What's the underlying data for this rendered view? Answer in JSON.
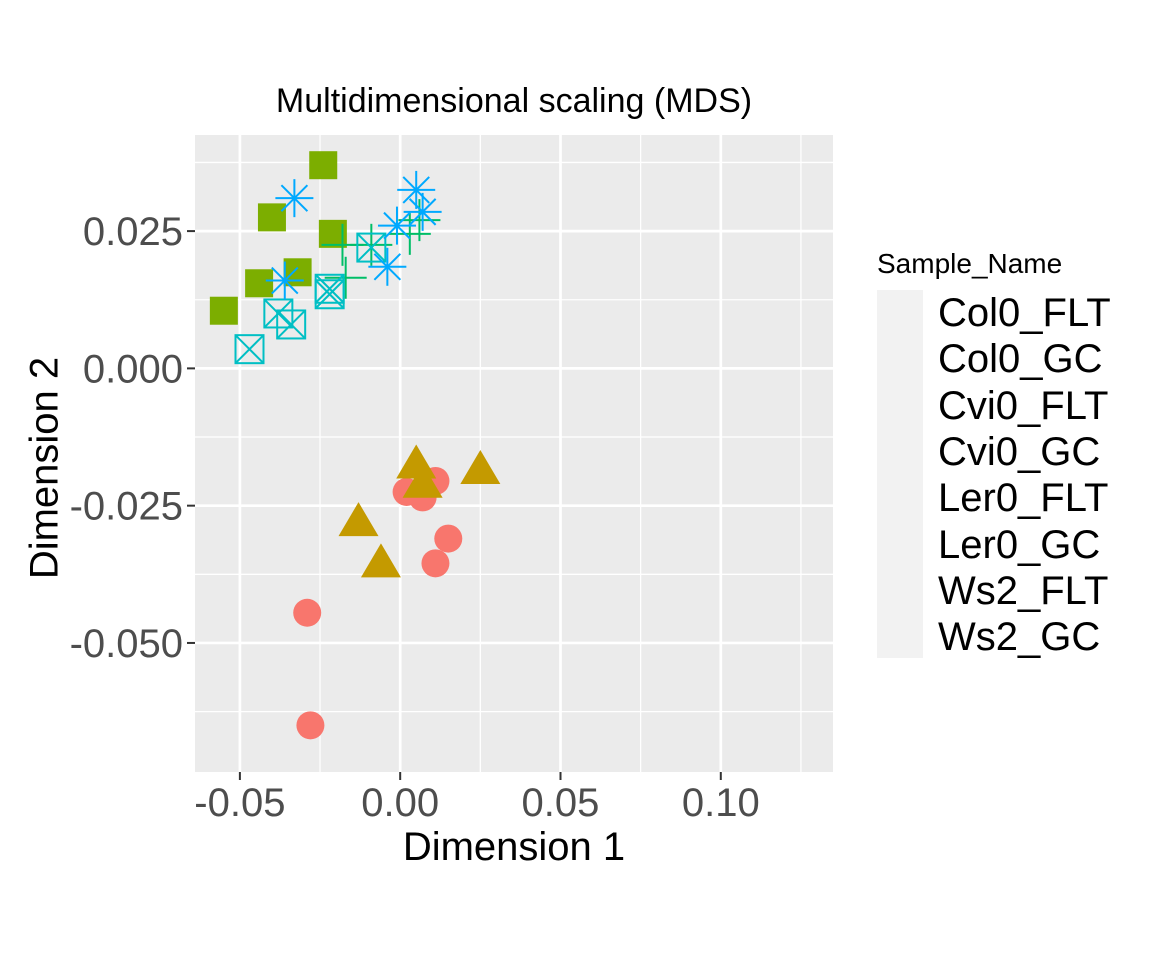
{
  "chart_data": {
    "type": "scatter",
    "title": "Multidimensional scaling (MDS)",
    "xlabel": "Dimension 1",
    "ylabel": "Dimension 2",
    "xlim": [
      -0.064,
      0.135
    ],
    "ylim": [
      -0.0735,
      0.0425
    ],
    "x_ticks": [
      -0.05,
      0.0,
      0.05,
      0.1
    ],
    "x_tick_labels": [
      "-0.05",
      "0.00",
      "0.05",
      "0.10"
    ],
    "y_ticks": [
      0.025,
      0.0,
      -0.025,
      -0.05
    ],
    "y_tick_labels": [
      "0.025",
      "0.000",
      "-0.025",
      "-0.050"
    ],
    "x_minor_ticks": [
      -0.025,
      0.025,
      0.075,
      0.125
    ],
    "y_minor_ticks": [
      0.0375,
      0.0125,
      -0.0125,
      -0.0375,
      -0.0625
    ],
    "grid": true,
    "legend_title": "Sample_Name",
    "legend_position": "right",
    "series": [
      {
        "name": "Col0_FLT",
        "shape": "circle",
        "color": "#F8766D",
        "points": [
          [
            0.011,
            -0.0205
          ],
          [
            0.002,
            -0.0225
          ],
          [
            0.007,
            -0.0235
          ],
          [
            0.015,
            -0.031
          ],
          [
            0.011,
            -0.0355
          ],
          [
            -0.029,
            -0.0445
          ],
          [
            -0.028,
            -0.065
          ]
        ]
      },
      {
        "name": "Col0_GC",
        "shape": "triangle",
        "color": "#C49A00",
        "points": [
          [
            0.005,
            -0.0175
          ],
          [
            0.007,
            -0.021
          ],
          [
            0.025,
            -0.0185
          ],
          [
            -0.013,
            -0.028
          ],
          [
            -0.006,
            -0.0355
          ]
        ]
      },
      {
        "name": "Cvi0_FLT",
        "shape": "square",
        "color": "#7CAE00",
        "points": [
          [
            -0.024,
            0.037
          ],
          [
            -0.04,
            0.0275
          ],
          [
            -0.021,
            0.0245
          ],
          [
            -0.032,
            0.0175
          ],
          [
            -0.044,
            0.0155
          ],
          [
            -0.055,
            0.0105
          ]
        ]
      },
      {
        "name": "Cvi0_GC",
        "shape": "plus",
        "color": "#00BE67",
        "points": [
          [
            -0.018,
            0.0225
          ],
          [
            0.006,
            0.027
          ],
          [
            0.003,
            0.0245
          ],
          [
            -0.009,
            0.0225
          ],
          [
            -0.017,
            0.0165
          ]
        ]
      },
      {
        "name": "Ler0_FLT",
        "shape": "square-x",
        "color": "#00BFC4",
        "points": [
          [
            -0.009,
            0.022
          ],
          [
            -0.022,
            0.0145
          ],
          [
            -0.022,
            0.0135
          ],
          [
            -0.038,
            0.01
          ],
          [
            -0.034,
            0.008
          ],
          [
            -0.047,
            0.0035
          ]
        ]
      },
      {
        "name": "Ler0_GC",
        "shape": "asterisk",
        "color": "#00A9FF",
        "points": [
          [
            0.005,
            0.0325
          ],
          [
            -0.033,
            0.031
          ],
          [
            0.007,
            0.0285
          ],
          [
            -0.001,
            0.026
          ],
          [
            -0.004,
            0.0185
          ],
          [
            -0.036,
            0.016
          ]
        ]
      },
      {
        "name": "Ws2_FLT",
        "shape": "none",
        "color": "#C77CFF",
        "points": []
      },
      {
        "name": "Ws2_GC",
        "shape": "none",
        "color": "#FF61CC",
        "points": []
      }
    ]
  }
}
